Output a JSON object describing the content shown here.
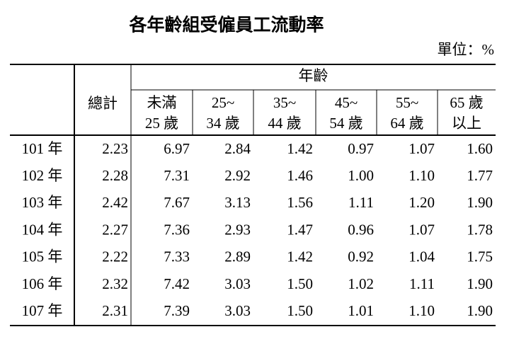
{
  "title": "各年齡組受僱員工流動率",
  "unit": "單位：%",
  "table": {
    "group_header": "年齡",
    "total_header": "總計",
    "age_headers": [
      [
        "未滿",
        "25 歲"
      ],
      [
        "25~",
        "34 歲"
      ],
      [
        "35~",
        "44 歲"
      ],
      [
        "45~",
        "54 歲"
      ],
      [
        "55~",
        "64 歲"
      ],
      [
        "65 歲",
        "以上"
      ]
    ],
    "rows": [
      {
        "year": "101 年",
        "values": [
          "2.23",
          "6.97",
          "2.84",
          "1.42",
          "0.97",
          "1.07",
          "1.60"
        ]
      },
      {
        "year": "102 年",
        "values": [
          "2.28",
          "7.31",
          "2.92",
          "1.46",
          "1.00",
          "1.10",
          "1.77"
        ]
      },
      {
        "year": "103 年",
        "values": [
          "2.42",
          "7.67",
          "3.13",
          "1.56",
          "1.11",
          "1.20",
          "1.90"
        ]
      },
      {
        "year": "104 年",
        "values": [
          "2.27",
          "7.36",
          "2.93",
          "1.47",
          "0.96",
          "1.07",
          "1.78"
        ]
      },
      {
        "year": "105 年",
        "values": [
          "2.22",
          "7.33",
          "2.89",
          "1.42",
          "0.92",
          "1.04",
          "1.75"
        ]
      },
      {
        "year": "106 年",
        "values": [
          "2.32",
          "7.42",
          "3.03",
          "1.50",
          "1.02",
          "1.11",
          "1.90"
        ]
      },
      {
        "year": "107 年",
        "values": [
          "2.31",
          "7.39",
          "3.03",
          "1.50",
          "1.01",
          "1.10",
          "1.90"
        ]
      }
    ]
  }
}
